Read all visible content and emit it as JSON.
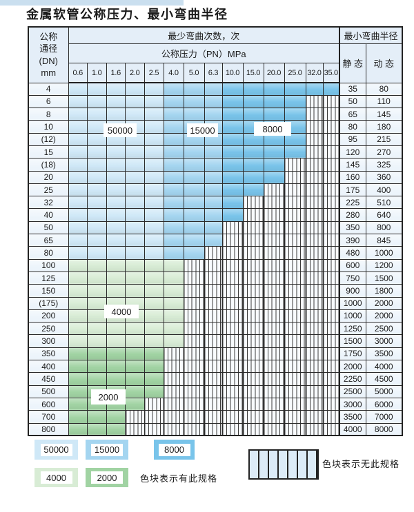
{
  "title": "金属软管公称压力、最小弯曲半径",
  "table": {
    "corner_lines": [
      "公称",
      "通径",
      "(DN)",
      "mm"
    ],
    "cycles_header": "最少弯曲次数，次",
    "pressure_header": "公称压力（PN）MPa",
    "radius_header": "最小弯曲半径",
    "static_label": "静 态",
    "dynamic_label": "动 态",
    "pressures": [
      "0.6",
      "1.0",
      "1.6",
      "2.0",
      "2.5",
      "4.0",
      "5.0",
      "6.3",
      "10.0",
      "15.0",
      "20.0",
      "25.0",
      "32.0",
      "35.0"
    ],
    "rows": [
      {
        "dn": "4",
        "colored_through": "35.0",
        "palette": "blue",
        "static": "35",
        "dynamic": "80"
      },
      {
        "dn": "6",
        "colored_through": "25.0",
        "palette": "blue",
        "static": "50",
        "dynamic": "110"
      },
      {
        "dn": "8",
        "colored_through": "25.0",
        "palette": "blue",
        "static": "65",
        "dynamic": "145"
      },
      {
        "dn": "10",
        "colored_through": "25.0",
        "palette": "blue",
        "static": "80",
        "dynamic": "180"
      },
      {
        "dn": "(12)",
        "colored_through": "25.0",
        "palette": "blue",
        "static": "95",
        "dynamic": "215"
      },
      {
        "dn": "15",
        "colored_through": "25.0",
        "palette": "blue",
        "static": "120",
        "dynamic": "270"
      },
      {
        "dn": "(18)",
        "colored_through": "20.0",
        "palette": "blue",
        "static": "145",
        "dynamic": "325"
      },
      {
        "dn": "20",
        "colored_through": "20.0",
        "palette": "blue",
        "static": "160",
        "dynamic": "360"
      },
      {
        "dn": "25",
        "colored_through": "15.0",
        "palette": "blue",
        "static": "175",
        "dynamic": "400"
      },
      {
        "dn": "32",
        "colored_through": "10.0",
        "palette": "blue",
        "static": "225",
        "dynamic": "510"
      },
      {
        "dn": "40",
        "colored_through": "10.0",
        "palette": "blue",
        "static": "280",
        "dynamic": "640"
      },
      {
        "dn": "50",
        "colored_through": "6.3",
        "palette": "blue",
        "static": "350",
        "dynamic": "800"
      },
      {
        "dn": "65",
        "colored_through": "6.3",
        "palette": "blue",
        "static": "390",
        "dynamic": "845"
      },
      {
        "dn": "80",
        "colored_through": "5.0",
        "palette": "blue",
        "static": "480",
        "dynamic": "1000"
      },
      {
        "dn": "100",
        "colored_through": "4.0",
        "palette": "green-4000",
        "static": "600",
        "dynamic": "1200"
      },
      {
        "dn": "125",
        "colored_through": "4.0",
        "palette": "green-4000",
        "static": "750",
        "dynamic": "1500"
      },
      {
        "dn": "150",
        "colored_through": "4.0",
        "palette": "green-4000",
        "static": "900",
        "dynamic": "1800"
      },
      {
        "dn": "(175)",
        "colored_through": "4.0",
        "palette": "green-4000",
        "static": "1000",
        "dynamic": "2000"
      },
      {
        "dn": "200",
        "colored_through": "4.0",
        "palette": "green-4000",
        "static": "1000",
        "dynamic": "2000"
      },
      {
        "dn": "250",
        "colored_through": "4.0",
        "palette": "green-4000",
        "static": "1250",
        "dynamic": "2500"
      },
      {
        "dn": "300",
        "colored_through": "4.0",
        "palette": "green-4000",
        "static": "1500",
        "dynamic": "3000"
      },
      {
        "dn": "350",
        "colored_through": "2.5",
        "palette": "green-2000",
        "static": "1750",
        "dynamic": "3500"
      },
      {
        "dn": "400",
        "colored_through": "2.5",
        "palette": "green-2000",
        "static": "2000",
        "dynamic": "4000"
      },
      {
        "dn": "450",
        "colored_through": "2.5",
        "palette": "green-2000",
        "static": "2250",
        "dynamic": "4500"
      },
      {
        "dn": "500",
        "colored_through": "2.5",
        "palette": "green-2000",
        "static": "2500",
        "dynamic": "5000"
      },
      {
        "dn": "600",
        "colored_through": "2.0",
        "palette": "green-2000",
        "static": "3000",
        "dynamic": "6000"
      },
      {
        "dn": "700",
        "colored_through": "1.6",
        "palette": "green-2000",
        "static": "3500",
        "dynamic": "7000"
      },
      {
        "dn": "800",
        "colored_through": "1.6",
        "palette": "green-2000",
        "static": "4000",
        "dynamic": "8000"
      }
    ]
  },
  "overlays": [
    "50000",
    "15000",
    "8000",
    "4000",
    "2000"
  ],
  "legend": {
    "swatches": [
      {
        "label": "50000",
        "color_key": "cycles_50000"
      },
      {
        "label": "15000",
        "color_key": "cycles_15000"
      },
      {
        "label": "8000",
        "color_key": "cycles_8000"
      },
      {
        "label": "4000",
        "color_key": "cycles_4000"
      },
      {
        "label": "2000",
        "color_key": "cycles_2000"
      }
    ],
    "has_spec_note": "色块表示有此规格",
    "no_spec_note": "色块表示无此规格"
  },
  "colors": {
    "cycles_50000": "#cfe8f7",
    "cycles_15000": "#a4d5f0",
    "cycles_8000": "#79c4ea",
    "cycles_4000": "#d8ecd5",
    "cycles_2000": "#a1d3a3",
    "grid_line": "#2b2b2b",
    "header_fill": "#e4eef8",
    "label_fill": "#ecf4fb"
  }
}
